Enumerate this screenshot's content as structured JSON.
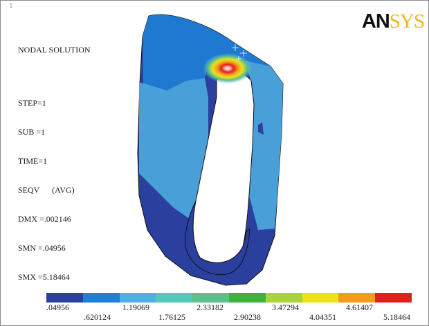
{
  "window_number": "1",
  "info": {
    "title": "NODAL SOLUTION",
    "step": "STEP=1",
    "sub": "SUB =1",
    "time": "TIME=1",
    "result": "SEQV      (AVG)",
    "dmx": "DMX =.002146",
    "smn": "SMN =.04956",
    "smx": "SMX =5.18464"
  },
  "logo": {
    "part1": "AN",
    "part2": "SYS"
  },
  "legend": {
    "colors": [
      "#2b3f9e",
      "#1f7fd6",
      "#4fb0e0",
      "#56c8b8",
      "#5cc08a",
      "#3eb23f",
      "#a8d33a",
      "#ece21a",
      "#f29b1d",
      "#e0201f"
    ],
    "labels_top": [
      ".04956",
      "1.19069",
      "2.33182",
      "3.47294",
      "4.61407"
    ],
    "labels_bottom": [
      ".620124",
      "1.76125",
      "2.90238",
      "4.04351",
      "5.18464"
    ]
  }
}
